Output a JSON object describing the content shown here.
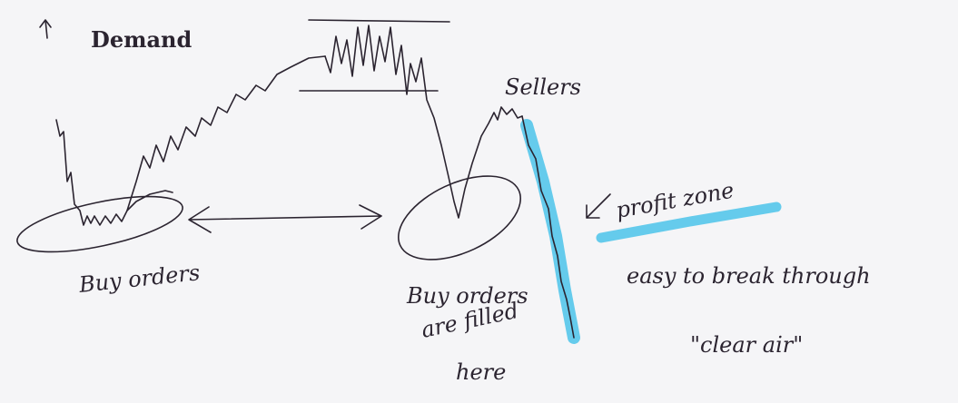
{
  "labels": {
    "demand": "Demand",
    "sellers": "Sellers",
    "profit_zone": "profit zone",
    "buy_orders_left": "Buy orders",
    "buy_orders_right": [
      "Buy orders",
      "are filled",
      "here"
    ],
    "note": [
      "easy to break through",
      "\"clear air\""
    ]
  }
}
